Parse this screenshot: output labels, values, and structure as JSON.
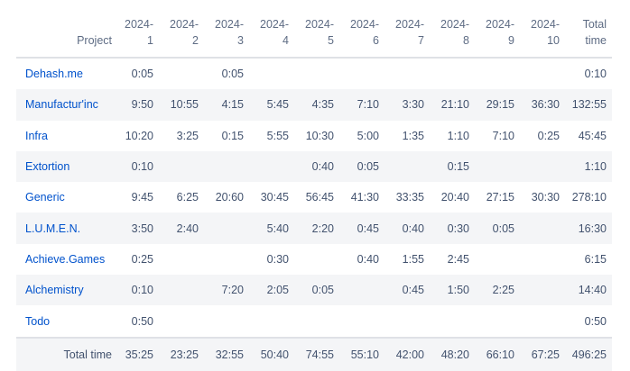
{
  "table": {
    "header": {
      "project": "Project",
      "months": [
        [
          "2024-",
          "1"
        ],
        [
          "2024-",
          "2"
        ],
        [
          "2024-",
          "3"
        ],
        [
          "2024-",
          "4"
        ],
        [
          "2024-",
          "5"
        ],
        [
          "2024-",
          "6"
        ],
        [
          "2024-",
          "7"
        ],
        [
          "2024-",
          "8"
        ],
        [
          "2024-",
          "9"
        ],
        [
          "2024-",
          "10"
        ]
      ],
      "total": [
        "Total",
        "time"
      ]
    },
    "rows": [
      {
        "project": "Dehash.me",
        "values": [
          "0:05",
          "",
          "0:05",
          "",
          "",
          "",
          "",
          "",
          "",
          ""
        ],
        "total": "0:10"
      },
      {
        "project": "Manufactur'inc",
        "values": [
          "9:50",
          "10:55",
          "4:15",
          "5:45",
          "4:35",
          "7:10",
          "3:30",
          "21:10",
          "29:15",
          "36:30"
        ],
        "total": "132:55"
      },
      {
        "project": "Infra",
        "values": [
          "10:20",
          "3:25",
          "0:15",
          "5:55",
          "10:30",
          "5:00",
          "1:35",
          "1:10",
          "7:10",
          "0:25"
        ],
        "total": "45:45"
      },
      {
        "project": "Extortion",
        "values": [
          "0:10",
          "",
          "",
          "",
          "0:40",
          "0:05",
          "",
          "0:15",
          "",
          ""
        ],
        "total": "1:10"
      },
      {
        "project": "Generic",
        "values": [
          "9:45",
          "6:25",
          "20:60",
          "30:45",
          "56:45",
          "41:30",
          "33:35",
          "20:40",
          "27:15",
          "30:30"
        ],
        "total": "278:10"
      },
      {
        "project": "L.U.M.E.N.",
        "values": [
          "3:50",
          "2:40",
          "",
          "5:40",
          "2:20",
          "0:45",
          "0:40",
          "0:30",
          "0:05",
          ""
        ],
        "total": "16:30"
      },
      {
        "project": "Achieve.Games",
        "values": [
          "0:25",
          "",
          "",
          "0:30",
          "",
          "0:40",
          "1:55",
          "2:45",
          "",
          ""
        ],
        "total": "6:15"
      },
      {
        "project": "Alchemistry",
        "values": [
          "0:10",
          "",
          "7:20",
          "2:05",
          "0:05",
          "",
          "0:45",
          "1:50",
          "2:25",
          ""
        ],
        "total": "14:40"
      },
      {
        "project": "Todo",
        "values": [
          "0:50",
          "",
          "",
          "",
          "",
          "",
          "",
          "",
          "",
          ""
        ],
        "total": "0:50"
      }
    ],
    "footer": {
      "label": "Total time",
      "values": [
        "35:25",
        "23:25",
        "32:55",
        "50:40",
        "74:55",
        "55:10",
        "42:00",
        "48:20",
        "66:10",
        "67:25"
      ],
      "total": "496:25"
    }
  },
  "colors": {
    "link": "#0052cc",
    "text": "#42526e",
    "header_text": "#5e6c84",
    "stripe": "#f4f5f7",
    "border": "#dfe1e6"
  }
}
